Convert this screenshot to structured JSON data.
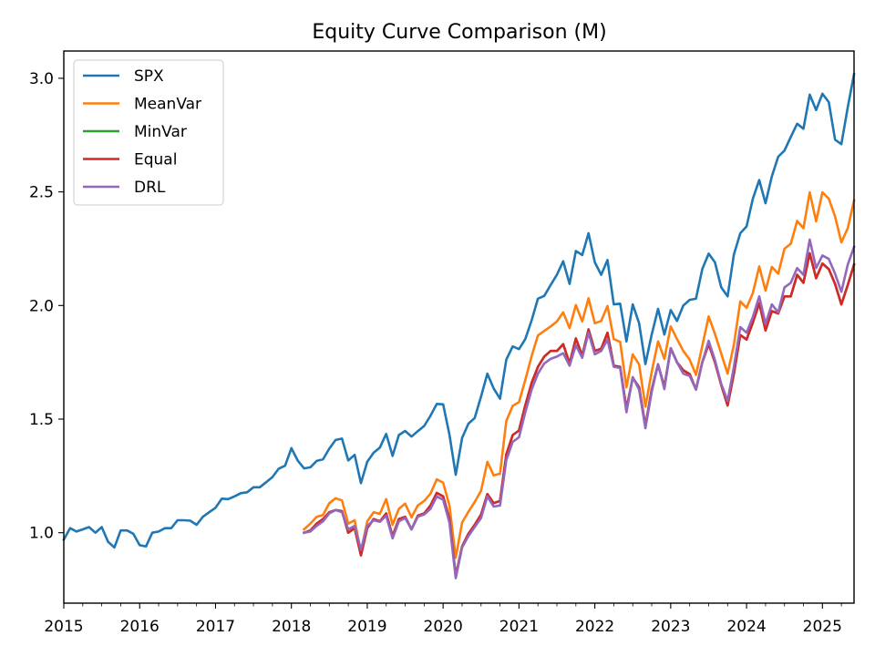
{
  "chart_data": {
    "type": "line",
    "title": "Equity Curve Comparison (M)",
    "xlabel": "",
    "ylabel": "",
    "x_scale": "time",
    "xlim": [
      "2015-01",
      "2025-06"
    ],
    "ylim": [
      0.69,
      3.12
    ],
    "x_ticks": [
      "2015",
      "2016",
      "2017",
      "2018",
      "2019",
      "2020",
      "2021",
      "2022",
      "2023",
      "2024",
      "2025"
    ],
    "y_ticks": [
      "1.0",
      "1.5",
      "2.0",
      "2.5",
      "3.0"
    ],
    "grid": false,
    "legend_position": "top-left",
    "series": [
      {
        "name": "SPX",
        "color": "#1f77b4",
        "start": "2015-01",
        "values": [
          0.97,
          1.02,
          1.005,
          1.015,
          1.025,
          1.0,
          1.025,
          0.96,
          0.935,
          1.01,
          1.01,
          0.995,
          0.945,
          0.94,
          1.0,
          1.005,
          1.02,
          1.02,
          1.055,
          1.055,
          1.053,
          1.035,
          1.07,
          1.09,
          1.11,
          1.15,
          1.148,
          1.16,
          1.174,
          1.178,
          1.2,
          1.2,
          1.222,
          1.245,
          1.282,
          1.295,
          1.372,
          1.318,
          1.283,
          1.288,
          1.316,
          1.323,
          1.37,
          1.408,
          1.414,
          1.318,
          1.343,
          1.218,
          1.312,
          1.352,
          1.375,
          1.435,
          1.338,
          1.43,
          1.448,
          1.423,
          1.447,
          1.47,
          1.515,
          1.567,
          1.565,
          1.432,
          1.255,
          1.417,
          1.48,
          1.505,
          1.6,
          1.7,
          1.635,
          1.59,
          1.762,
          1.82,
          1.808,
          1.852,
          1.935,
          2.03,
          2.042,
          2.09,
          2.135,
          2.195,
          2.095,
          2.24,
          2.222,
          2.318,
          2.19,
          2.135,
          2.2,
          2.005,
          2.008,
          1.842,
          2.005,
          1.922,
          1.742,
          1.872,
          1.985,
          1.872,
          1.98,
          1.932,
          2.0,
          2.025,
          2.03,
          2.16,
          2.228,
          2.19,
          2.08,
          2.04,
          2.225,
          2.318,
          2.348,
          2.47,
          2.552,
          2.45,
          2.568,
          2.655,
          2.682,
          2.742,
          2.8,
          2.778,
          2.928,
          2.86,
          2.932,
          2.895,
          2.73,
          2.71,
          2.872,
          3.018
        ]
      },
      {
        "name": "MeanVar",
        "color": "#ff7f0e",
        "start": "2018-03",
        "values": [
          1.015,
          1.04,
          1.07,
          1.078,
          1.13,
          1.152,
          1.142,
          1.04,
          1.055,
          0.915,
          1.05,
          1.09,
          1.083,
          1.148,
          1.035,
          1.105,
          1.128,
          1.068,
          1.12,
          1.14,
          1.172,
          1.235,
          1.22,
          1.12,
          0.89,
          1.045,
          1.092,
          1.135,
          1.185,
          1.312,
          1.252,
          1.26,
          1.492,
          1.558,
          1.575,
          1.672,
          1.778,
          1.868,
          1.888,
          1.908,
          1.93,
          1.97,
          1.9,
          2.002,
          1.93,
          2.032,
          1.922,
          1.932,
          1.998,
          1.852,
          1.84,
          1.64,
          1.785,
          1.74,
          1.555,
          1.708,
          1.842,
          1.765,
          1.908,
          1.852,
          1.8,
          1.762,
          1.695,
          1.822,
          1.952,
          1.875,
          1.788,
          1.7,
          1.828,
          2.018,
          1.99,
          2.055,
          2.172,
          2.065,
          2.17,
          2.14,
          2.25,
          2.272,
          2.372,
          2.34,
          2.498,
          2.37,
          2.498,
          2.47,
          2.392,
          2.278,
          2.34,
          2.462
        ]
      },
      {
        "name": "MinVar",
        "color": "#2ca02c",
        "start": "2018-03",
        "values": [
          1.0,
          1.01,
          1.04,
          1.06,
          1.09,
          1.1,
          1.095,
          1.0,
          1.02,
          0.9,
          1.02,
          1.06,
          1.05,
          1.085,
          0.985,
          1.06,
          1.07,
          1.015,
          1.075,
          1.085,
          1.12,
          1.175,
          1.16,
          1.06,
          0.81,
          0.94,
          0.995,
          1.035,
          1.08,
          1.17,
          1.13,
          1.14,
          1.345,
          1.43,
          1.45,
          1.56,
          1.66,
          1.73,
          1.775,
          1.8,
          1.8,
          1.83,
          1.745,
          1.855,
          1.78,
          1.895,
          1.8,
          1.81,
          1.88,
          1.735,
          1.73,
          1.545,
          1.682,
          1.64,
          1.47,
          1.63,
          1.74,
          1.642,
          1.812,
          1.75,
          1.715,
          1.698,
          1.63,
          1.75,
          1.83,
          1.75,
          1.65,
          1.56,
          1.7,
          1.87,
          1.85,
          1.925,
          2.01,
          1.89,
          1.975,
          1.965,
          2.04,
          2.04,
          2.135,
          2.1,
          2.23,
          2.12,
          2.185,
          2.16,
          2.095,
          2.005,
          2.09,
          2.18
        ]
      },
      {
        "name": "Equal",
        "color": "#d62728",
        "start": "2018-03",
        "values": [
          1.0,
          1.01,
          1.04,
          1.06,
          1.09,
          1.1,
          1.095,
          1.0,
          1.02,
          0.9,
          1.02,
          1.06,
          1.05,
          1.085,
          0.985,
          1.06,
          1.07,
          1.015,
          1.075,
          1.085,
          1.12,
          1.175,
          1.16,
          1.06,
          0.81,
          0.94,
          0.995,
          1.035,
          1.08,
          1.17,
          1.13,
          1.14,
          1.345,
          1.43,
          1.45,
          1.56,
          1.66,
          1.73,
          1.775,
          1.8,
          1.8,
          1.83,
          1.745,
          1.855,
          1.78,
          1.895,
          1.8,
          1.81,
          1.88,
          1.735,
          1.73,
          1.545,
          1.682,
          1.64,
          1.47,
          1.63,
          1.74,
          1.642,
          1.812,
          1.75,
          1.715,
          1.698,
          1.63,
          1.75,
          1.83,
          1.75,
          1.65,
          1.56,
          1.7,
          1.87,
          1.85,
          1.925,
          2.01,
          1.89,
          1.975,
          1.965,
          2.04,
          2.04,
          2.135,
          2.1,
          2.23,
          2.12,
          2.185,
          2.16,
          2.095,
          2.005,
          2.09,
          2.18
        ]
      },
      {
        "name": "DRL",
        "color": "#9467bd",
        "start": "2018-03",
        "values": [
          1.0,
          1.005,
          1.03,
          1.05,
          1.085,
          1.1,
          1.09,
          1.015,
          1.03,
          0.925,
          1.03,
          1.055,
          1.048,
          1.075,
          0.975,
          1.05,
          1.065,
          1.015,
          1.07,
          1.08,
          1.105,
          1.16,
          1.145,
          1.045,
          0.8,
          0.935,
          0.985,
          1.025,
          1.065,
          1.16,
          1.115,
          1.12,
          1.32,
          1.4,
          1.42,
          1.53,
          1.63,
          1.7,
          1.745,
          1.765,
          1.775,
          1.79,
          1.735,
          1.825,
          1.77,
          1.88,
          1.785,
          1.8,
          1.85,
          1.73,
          1.725,
          1.53,
          1.685,
          1.63,
          1.46,
          1.62,
          1.742,
          1.632,
          1.812,
          1.75,
          1.7,
          1.69,
          1.63,
          1.75,
          1.845,
          1.76,
          1.655,
          1.58,
          1.73,
          1.905,
          1.88,
          1.95,
          2.04,
          1.92,
          2.005,
          1.97,
          2.08,
          2.1,
          2.165,
          2.135,
          2.29,
          2.165,
          2.22,
          2.205,
          2.14,
          2.06,
          2.18,
          2.258
        ]
      }
    ]
  }
}
